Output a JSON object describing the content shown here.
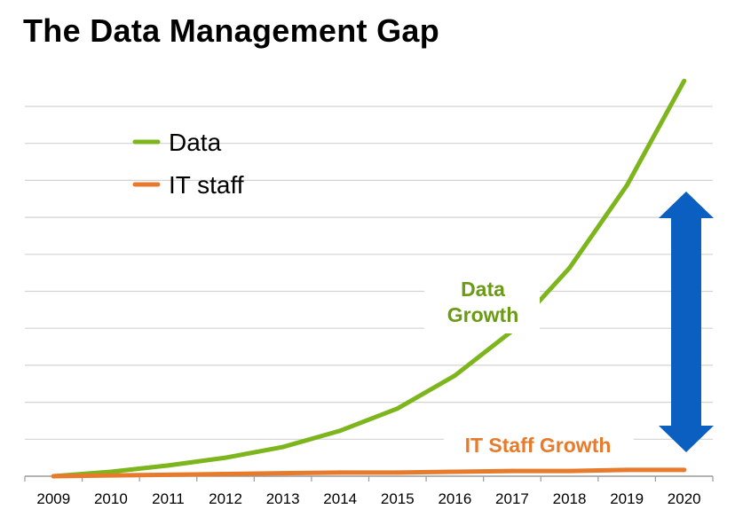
{
  "chart_data": {
    "type": "line",
    "title": "The Data Management Gap",
    "xlabel": "",
    "ylabel": "",
    "categories": [
      "2009",
      "2010",
      "2011",
      "2012",
      "2013",
      "2014",
      "2015",
      "2016",
      "2017",
      "2018",
      "2019",
      "2020"
    ],
    "ylim": [
      0,
      10
    ],
    "grid": true,
    "legend_position": "top-left",
    "series": [
      {
        "name": "Data",
        "color": "#7db51c",
        "values": [
          0,
          0.12,
          0.29,
          0.5,
          0.79,
          1.23,
          1.83,
          2.72,
          3.93,
          5.63,
          7.86,
          10.69
        ]
      },
      {
        "name": "IT staff",
        "color": "#e87a2c",
        "values": [
          0,
          0.02,
          0.04,
          0.06,
          0.08,
          0.1,
          0.1,
          0.12,
          0.14,
          0.14,
          0.17,
          0.17
        ]
      }
    ],
    "annotations": {
      "data_growth_line1": "Data",
      "data_growth_line2": "Growth",
      "it_staff_growth": "IT Staff Growth",
      "gap_arrow_color": "#0a5fc0",
      "data_color": "#6b9a14",
      "it_color": "#e87a2c"
    }
  }
}
